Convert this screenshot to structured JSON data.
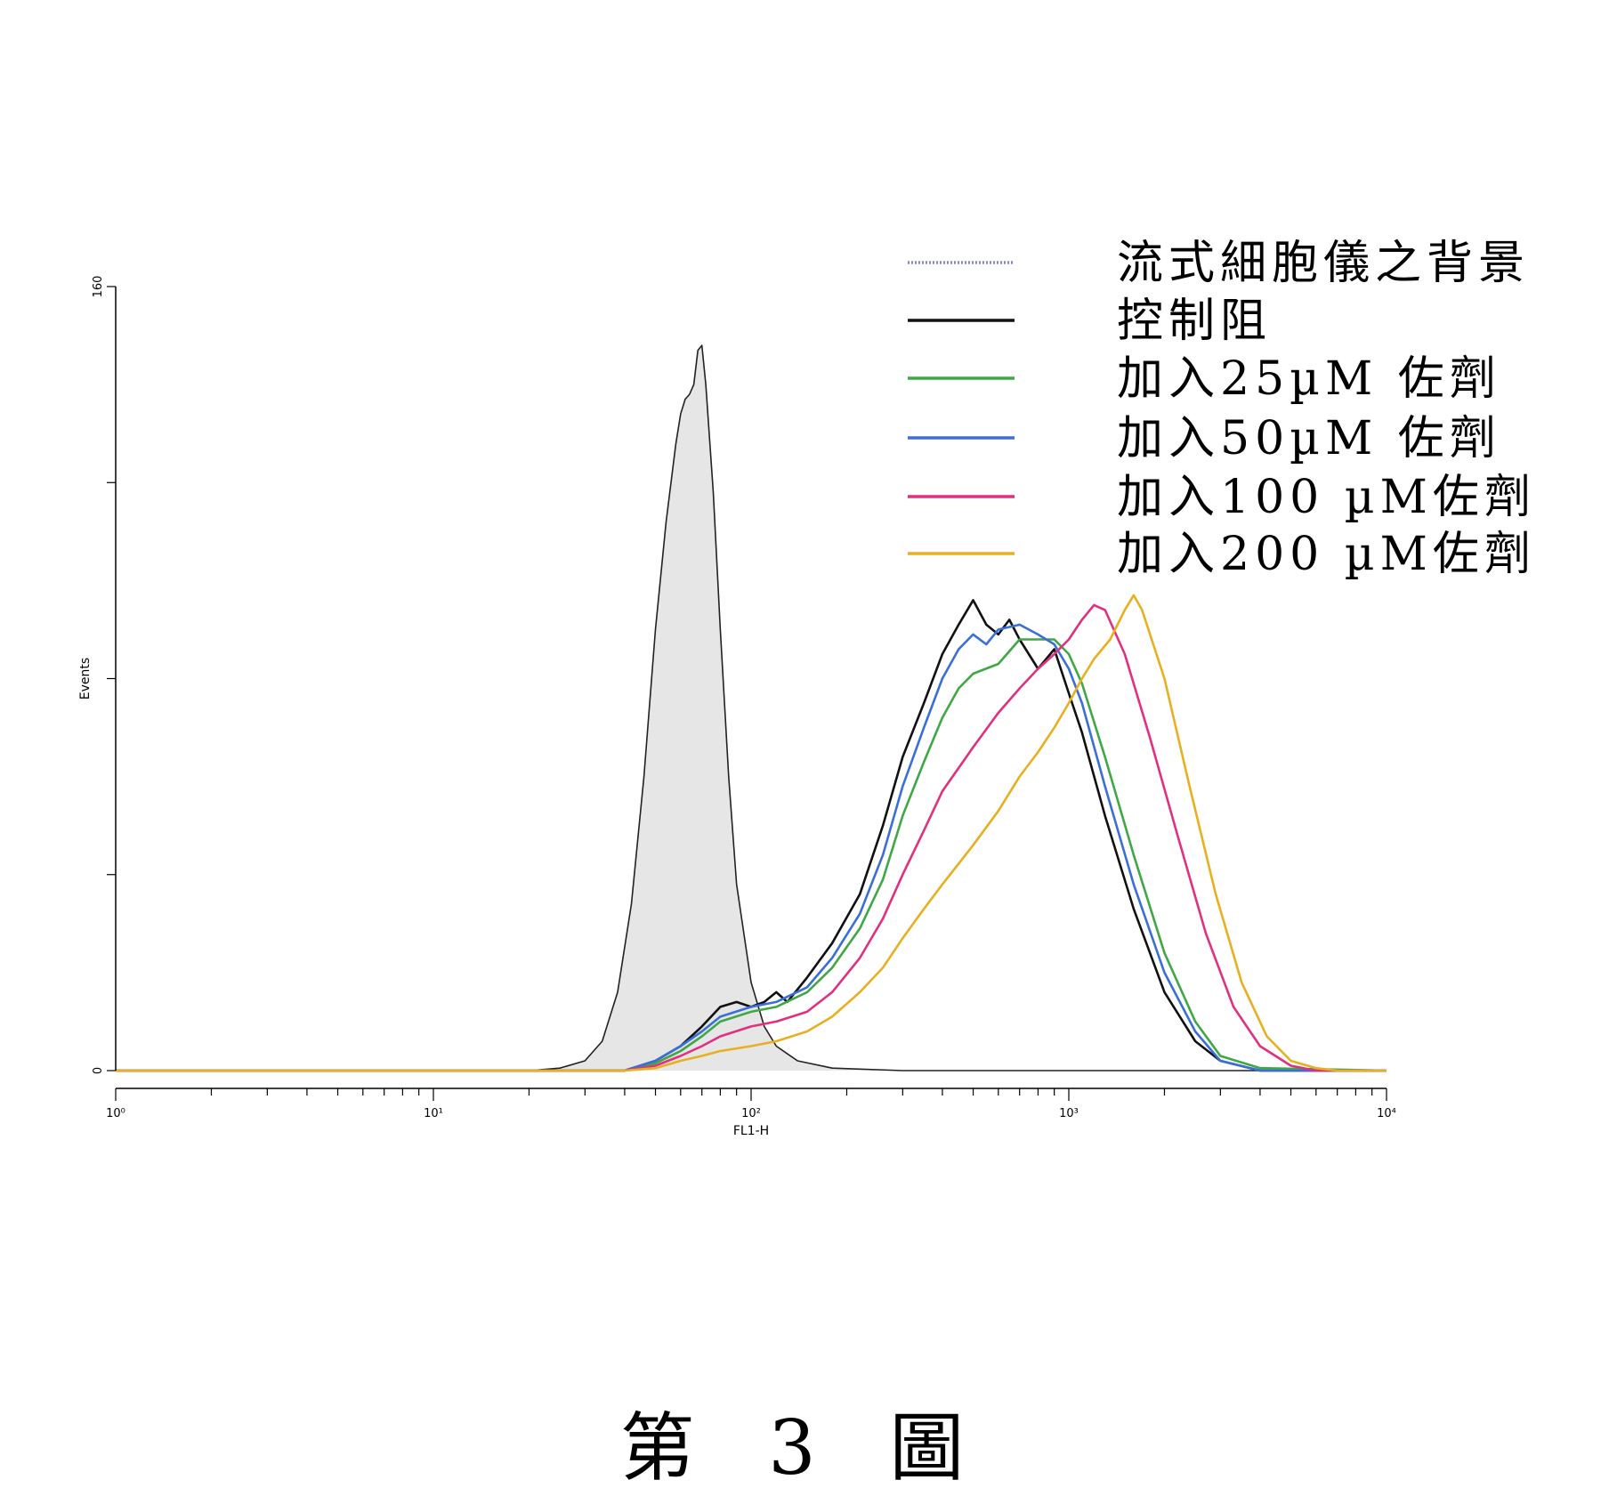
{
  "chart_data": {
    "type": "line",
    "xlabel": "FL1-H",
    "ylabel": "Events",
    "x_scale": "log",
    "xlim": [
      1,
      10000
    ],
    "ylim": [
      0,
      160
    ],
    "x_ticks": [
      {
        "value": 1,
        "label": "10⁰"
      },
      {
        "value": 10,
        "label": "10¹"
      },
      {
        "value": 100,
        "label": "10²"
      },
      {
        "value": 1000,
        "label": "10³"
      },
      {
        "value": 10000,
        "label": "10⁴"
      }
    ],
    "y_ticks": [
      {
        "value": 0,
        "label": "0"
      },
      {
        "value": 160,
        "label": "160"
      }
    ],
    "y_minor_ticks": [
      40,
      80,
      120
    ],
    "grid": false,
    "legend_position": "top-right",
    "series": [
      {
        "name": "流式細胞儀之背景",
        "color": "#8a8ab8",
        "fill": "#e6e6e6",
        "style": "dotted",
        "points": [
          [
            1,
            0
          ],
          [
            10,
            0
          ],
          [
            20,
            0
          ],
          [
            25,
            0.5
          ],
          [
            30,
            2
          ],
          [
            34,
            6
          ],
          [
            38,
            16
          ],
          [
            42,
            34
          ],
          [
            46,
            60
          ],
          [
            50,
            90
          ],
          [
            54,
            112
          ],
          [
            58,
            128
          ],
          [
            60,
            134
          ],
          [
            62,
            137
          ],
          [
            64,
            138
          ],
          [
            66,
            140
          ],
          [
            68,
            147
          ],
          [
            70,
            148
          ],
          [
            72,
            140
          ],
          [
            76,
            118
          ],
          [
            80,
            90
          ],
          [
            85,
            60
          ],
          [
            90,
            38
          ],
          [
            100,
            18
          ],
          [
            110,
            9
          ],
          [
            120,
            5
          ],
          [
            140,
            2
          ],
          [
            180,
            0.5
          ],
          [
            300,
            0
          ],
          [
            10000,
            0
          ]
        ]
      },
      {
        "name": "控制阻",
        "color": "#111111",
        "points": [
          [
            1,
            0
          ],
          [
            20,
            0
          ],
          [
            40,
            0
          ],
          [
            50,
            2
          ],
          [
            60,
            5
          ],
          [
            70,
            9
          ],
          [
            80,
            13
          ],
          [
            90,
            14
          ],
          [
            100,
            13
          ],
          [
            110,
            14
          ],
          [
            120,
            16
          ],
          [
            130,
            14
          ],
          [
            150,
            19
          ],
          [
            180,
            26
          ],
          [
            220,
            36
          ],
          [
            260,
            50
          ],
          [
            300,
            64
          ],
          [
            350,
            75
          ],
          [
            400,
            85
          ],
          [
            450,
            91
          ],
          [
            500,
            96
          ],
          [
            550,
            91
          ],
          [
            600,
            89
          ],
          [
            650,
            92
          ],
          [
            700,
            88
          ],
          [
            800,
            82
          ],
          [
            900,
            86
          ],
          [
            1000,
            77
          ],
          [
            1100,
            69
          ],
          [
            1300,
            52
          ],
          [
            1600,
            33
          ],
          [
            2000,
            16
          ],
          [
            2500,
            6
          ],
          [
            3000,
            2
          ],
          [
            4000,
            0
          ],
          [
            10000,
            0
          ]
        ]
      },
      {
        "name": "加入25µM 佐劑",
        "color": "#3fa845",
        "points": [
          [
            1,
            0
          ],
          [
            20,
            0
          ],
          [
            40,
            0
          ],
          [
            50,
            1.5
          ],
          [
            60,
            4
          ],
          [
            70,
            7
          ],
          [
            80,
            10
          ],
          [
            100,
            12
          ],
          [
            120,
            13
          ],
          [
            150,
            16
          ],
          [
            180,
            21
          ],
          [
            220,
            29
          ],
          [
            260,
            39
          ],
          [
            300,
            52
          ],
          [
            350,
            63
          ],
          [
            400,
            72
          ],
          [
            450,
            78
          ],
          [
            500,
            81
          ],
          [
            600,
            83
          ],
          [
            700,
            88
          ],
          [
            800,
            88
          ],
          [
            900,
            88
          ],
          [
            1000,
            85
          ],
          [
            1100,
            79
          ],
          [
            1300,
            64
          ],
          [
            1600,
            44
          ],
          [
            2000,
            24
          ],
          [
            2500,
            10
          ],
          [
            3000,
            3
          ],
          [
            4000,
            0.5
          ],
          [
            10000,
            0
          ]
        ]
      },
      {
        "name": "加入50µM 佐劑",
        "color": "#3a6fd9",
        "points": [
          [
            1,
            0
          ],
          [
            20,
            0
          ],
          [
            40,
            0
          ],
          [
            50,
            2
          ],
          [
            60,
            5
          ],
          [
            70,
            8
          ],
          [
            80,
            11
          ],
          [
            100,
            13
          ],
          [
            120,
            14
          ],
          [
            150,
            17
          ],
          [
            180,
            23
          ],
          [
            220,
            32
          ],
          [
            260,
            44
          ],
          [
            300,
            58
          ],
          [
            350,
            70
          ],
          [
            400,
            80
          ],
          [
            450,
            86
          ],
          [
            500,
            89
          ],
          [
            550,
            87
          ],
          [
            600,
            90
          ],
          [
            700,
            91
          ],
          [
            800,
            89
          ],
          [
            900,
            87
          ],
          [
            1000,
            82
          ],
          [
            1100,
            75
          ],
          [
            1300,
            58
          ],
          [
            1600,
            38
          ],
          [
            2000,
            20
          ],
          [
            2500,
            8
          ],
          [
            3000,
            2
          ],
          [
            4000,
            0
          ],
          [
            10000,
            0
          ]
        ]
      },
      {
        "name": "加入100 µM佐劑",
        "color": "#e0307f",
        "points": [
          [
            1,
            0
          ],
          [
            20,
            0
          ],
          [
            40,
            0
          ],
          [
            50,
            1
          ],
          [
            60,
            3
          ],
          [
            70,
            5
          ],
          [
            80,
            7
          ],
          [
            100,
            9
          ],
          [
            120,
            10
          ],
          [
            150,
            12
          ],
          [
            180,
            16
          ],
          [
            220,
            23
          ],
          [
            260,
            31
          ],
          [
            300,
            40
          ],
          [
            350,
            49
          ],
          [
            400,
            57
          ],
          [
            500,
            66
          ],
          [
            600,
            73
          ],
          [
            700,
            78
          ],
          [
            800,
            82
          ],
          [
            900,
            85
          ],
          [
            1000,
            88
          ],
          [
            1100,
            92
          ],
          [
            1200,
            95
          ],
          [
            1300,
            94
          ],
          [
            1500,
            85
          ],
          [
            1800,
            68
          ],
          [
            2200,
            48
          ],
          [
            2700,
            28
          ],
          [
            3300,
            13
          ],
          [
            4000,
            5
          ],
          [
            5000,
            1
          ],
          [
            6000,
            0
          ],
          [
            10000,
            0
          ]
        ]
      },
      {
        "name": "加入200 µM佐劑",
        "color": "#e8b020",
        "points": [
          [
            1,
            0
          ],
          [
            20,
            0
          ],
          [
            40,
            0
          ],
          [
            50,
            0.5
          ],
          [
            60,
            2
          ],
          [
            70,
            3
          ],
          [
            80,
            4
          ],
          [
            100,
            5
          ],
          [
            120,
            6
          ],
          [
            150,
            8
          ],
          [
            180,
            11
          ],
          [
            220,
            16
          ],
          [
            260,
            21
          ],
          [
            300,
            27
          ],
          [
            350,
            33
          ],
          [
            400,
            38
          ],
          [
            500,
            46
          ],
          [
            600,
            53
          ],
          [
            700,
            60
          ],
          [
            800,
            65
          ],
          [
            900,
            70
          ],
          [
            1000,
            75
          ],
          [
            1100,
            80
          ],
          [
            1200,
            84
          ],
          [
            1350,
            88
          ],
          [
            1500,
            94
          ],
          [
            1600,
            97
          ],
          [
            1700,
            94
          ],
          [
            2000,
            80
          ],
          [
            2400,
            58
          ],
          [
            2900,
            36
          ],
          [
            3500,
            18
          ],
          [
            4200,
            7
          ],
          [
            5000,
            2
          ],
          [
            6000,
            0.5
          ],
          [
            7000,
            0
          ],
          [
            10000,
            0
          ]
        ]
      }
    ]
  },
  "caption": "第 3 圖"
}
